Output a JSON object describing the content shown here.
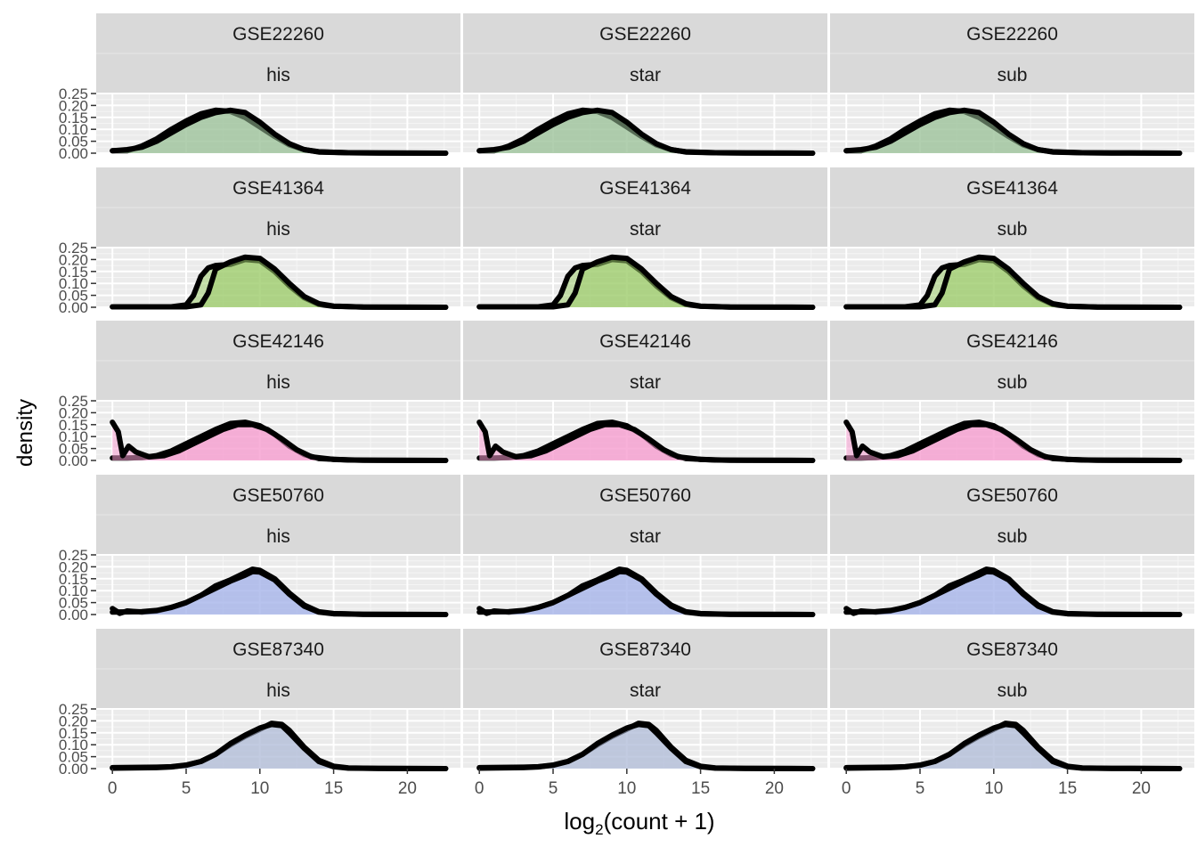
{
  "chart_data": {
    "type": "area",
    "facet_rows": [
      "GSE22260",
      "GSE41364",
      "GSE42146",
      "GSE50760",
      "GSE87340"
    ],
    "facet_cols": [
      "his",
      "star",
      "sub"
    ],
    "xlabel_main": "log",
    "xlabel_sub": "2",
    "xlabel_rest": "(count + 1)",
    "ylabel": "density",
    "x_ticks": [
      "0",
      "5",
      "10",
      "15",
      "20"
    ],
    "y_ticks": [
      "0.00",
      "0.05",
      "0.10",
      "0.15",
      "0.20",
      "0.25"
    ],
    "xlim": [
      -1.1,
      23.6
    ],
    "ylim": [
      0,
      0.25
    ],
    "grid": true,
    "legend": "none",
    "row_colors": [
      "#9cc29a",
      "#9ccc6c",
      "#f59ccf",
      "#a6b4ea",
      "#b2bdd8"
    ],
    "curves": {
      "GSE22260": [
        [
          [
            0,
            0.01
          ],
          [
            1,
            0.01
          ],
          [
            2,
            0.03
          ],
          [
            3,
            0.06
          ],
          [
            4,
            0.1
          ],
          [
            5,
            0.135
          ],
          [
            6,
            0.165
          ],
          [
            7,
            0.18
          ],
          [
            8,
            0.175
          ],
          [
            9,
            0.15
          ],
          [
            10,
            0.11
          ],
          [
            11,
            0.07
          ],
          [
            12,
            0.035
          ],
          [
            13,
            0.015
          ],
          [
            14,
            0.006
          ],
          [
            16,
            0.002
          ],
          [
            18,
            0.001
          ],
          [
            22.6,
            0.0
          ]
        ],
        [
          [
            0,
            0.01
          ],
          [
            1,
            0.015
          ],
          [
            2,
            0.025
          ],
          [
            3,
            0.05
          ],
          [
            4,
            0.085
          ],
          [
            5,
            0.12
          ],
          [
            6,
            0.15
          ],
          [
            7,
            0.17
          ],
          [
            8,
            0.18
          ],
          [
            9,
            0.17
          ],
          [
            10,
            0.13
          ],
          [
            11,
            0.08
          ],
          [
            12,
            0.04
          ],
          [
            13,
            0.015
          ],
          [
            14,
            0.005
          ],
          [
            16,
            0.002
          ],
          [
            18,
            0.001
          ],
          [
            22.6,
            0.0
          ]
        ]
      ],
      "GSE41364": [
        [
          [
            0,
            0.002
          ],
          [
            4,
            0.002
          ],
          [
            5,
            0.01
          ],
          [
            5.5,
            0.05
          ],
          [
            6,
            0.13
          ],
          [
            6.5,
            0.165
          ],
          [
            7,
            0.175
          ],
          [
            8,
            0.18
          ],
          [
            9,
            0.2
          ],
          [
            10,
            0.195
          ],
          [
            11,
            0.15
          ],
          [
            12,
            0.09
          ],
          [
            13,
            0.04
          ],
          [
            14,
            0.012
          ],
          [
            15,
            0.004
          ],
          [
            17,
            0.001
          ],
          [
            22.6,
            0.0
          ]
        ],
        [
          [
            0,
            0.002
          ],
          [
            5,
            0.002
          ],
          [
            6,
            0.01
          ],
          [
            6.5,
            0.06
          ],
          [
            7,
            0.16
          ],
          [
            8,
            0.19
          ],
          [
            9,
            0.21
          ],
          [
            10,
            0.205
          ],
          [
            11,
            0.16
          ],
          [
            12,
            0.1
          ],
          [
            13,
            0.045
          ],
          [
            14,
            0.015
          ],
          [
            15,
            0.005
          ],
          [
            17,
            0.001
          ],
          [
            22.6,
            0.0
          ]
        ]
      ],
      "GSE42146": [
        [
          [
            0,
            0.01
          ],
          [
            1,
            0.01
          ],
          [
            2,
            0.012
          ],
          [
            3,
            0.02
          ],
          [
            4,
            0.04
          ],
          [
            5,
            0.07
          ],
          [
            6,
            0.1
          ],
          [
            7,
            0.13
          ],
          [
            8,
            0.155
          ],
          [
            9,
            0.16
          ],
          [
            10,
            0.145
          ],
          [
            11,
            0.11
          ],
          [
            12,
            0.06
          ],
          [
            13,
            0.025
          ],
          [
            14,
            0.008
          ],
          [
            16,
            0.002
          ],
          [
            18,
            0.001
          ],
          [
            22.6,
            0.0
          ]
        ],
        [
          [
            0,
            0.16
          ],
          [
            0.4,
            0.12
          ],
          [
            0.7,
            0.02
          ],
          [
            1.1,
            0.06
          ],
          [
            1.6,
            0.035
          ],
          [
            2.5,
            0.015
          ],
          [
            3.5,
            0.02
          ],
          [
            4.5,
            0.04
          ],
          [
            5.5,
            0.07
          ],
          [
            6.5,
            0.1
          ],
          [
            7.5,
            0.13
          ],
          [
            8.5,
            0.15
          ],
          [
            9.5,
            0.15
          ],
          [
            10.5,
            0.13
          ],
          [
            11.5,
            0.09
          ],
          [
            12.5,
            0.045
          ],
          [
            13.5,
            0.015
          ],
          [
            15,
            0.004
          ],
          [
            17,
            0.001
          ],
          [
            22.6,
            0.0
          ]
        ]
      ],
      "GSE50760": [
        [
          [
            0,
            0.025
          ],
          [
            0.5,
            0.005
          ],
          [
            1,
            0.015
          ],
          [
            2,
            0.01
          ],
          [
            3,
            0.015
          ],
          [
            4,
            0.03
          ],
          [
            5,
            0.05
          ],
          [
            6,
            0.08
          ],
          [
            7,
            0.12
          ],
          [
            8,
            0.145
          ],
          [
            9,
            0.175
          ],
          [
            9.5,
            0.19
          ],
          [
            10,
            0.185
          ],
          [
            11,
            0.15
          ],
          [
            12,
            0.09
          ],
          [
            13,
            0.04
          ],
          [
            14,
            0.012
          ],
          [
            15,
            0.004
          ],
          [
            17,
            0.001
          ],
          [
            22.6,
            0.0
          ]
        ],
        [
          [
            0,
            0.01
          ],
          [
            2,
            0.012
          ],
          [
            3,
            0.017
          ],
          [
            4,
            0.03
          ],
          [
            5,
            0.05
          ],
          [
            6,
            0.08
          ],
          [
            7,
            0.11
          ],
          [
            8,
            0.14
          ],
          [
            9,
            0.165
          ],
          [
            9.5,
            0.18
          ],
          [
            10,
            0.178
          ],
          [
            11,
            0.145
          ],
          [
            12,
            0.085
          ],
          [
            13,
            0.035
          ],
          [
            14,
            0.01
          ],
          [
            15,
            0.003
          ],
          [
            17,
            0.001
          ],
          [
            22.6,
            0.0
          ]
        ]
      ],
      "GSE87340": [
        [
          [
            0,
            0.004
          ],
          [
            3,
            0.006
          ],
          [
            4,
            0.008
          ],
          [
            5,
            0.015
          ],
          [
            6,
            0.03
          ],
          [
            7,
            0.06
          ],
          [
            8,
            0.1
          ],
          [
            9,
            0.135
          ],
          [
            10,
            0.165
          ],
          [
            10.8,
            0.19
          ],
          [
            11.5,
            0.185
          ],
          [
            12,
            0.16
          ],
          [
            13,
            0.09
          ],
          [
            14,
            0.035
          ],
          [
            15,
            0.01
          ],
          [
            16,
            0.003
          ],
          [
            18,
            0.001
          ],
          [
            22.6,
            0.0
          ]
        ],
        [
          [
            0,
            0.002
          ],
          [
            3,
            0.004
          ],
          [
            4,
            0.007
          ],
          [
            5,
            0.014
          ],
          [
            6,
            0.03
          ],
          [
            7,
            0.06
          ],
          [
            8,
            0.105
          ],
          [
            9,
            0.14
          ],
          [
            10,
            0.17
          ],
          [
            10.8,
            0.185
          ],
          [
            11.5,
            0.18
          ],
          [
            12,
            0.15
          ],
          [
            13,
            0.085
          ],
          [
            14,
            0.03
          ],
          [
            15,
            0.008
          ],
          [
            16,
            0.002
          ],
          [
            18,
            0.001
          ],
          [
            22.6,
            0.0
          ]
        ]
      ]
    }
  }
}
